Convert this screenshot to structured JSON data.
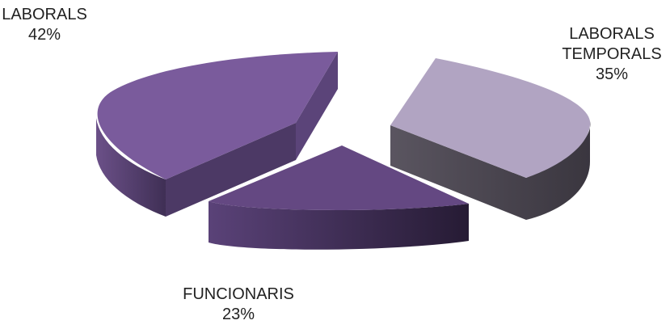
{
  "chart_data": {
    "type": "pie",
    "style": "3d-exploded",
    "slices": [
      {
        "label": "LABORALS",
        "value": 42,
        "value_text": "42%",
        "top_color": "#7a5a9b",
        "side_color": "#4e3a66"
      },
      {
        "label": "LABORALS TEMPORALS",
        "label_lines": [
          "LABORALS",
          "TEMPORALS"
        ],
        "value": 35,
        "value_text": "35%",
        "top_color": "#b1a4c1",
        "side_color": "#4a4650"
      },
      {
        "label": "FUNCIONARIS",
        "value": 23,
        "value_text": "23%",
        "top_color": "#624780",
        "side_color": "#3d2d52"
      }
    ]
  }
}
